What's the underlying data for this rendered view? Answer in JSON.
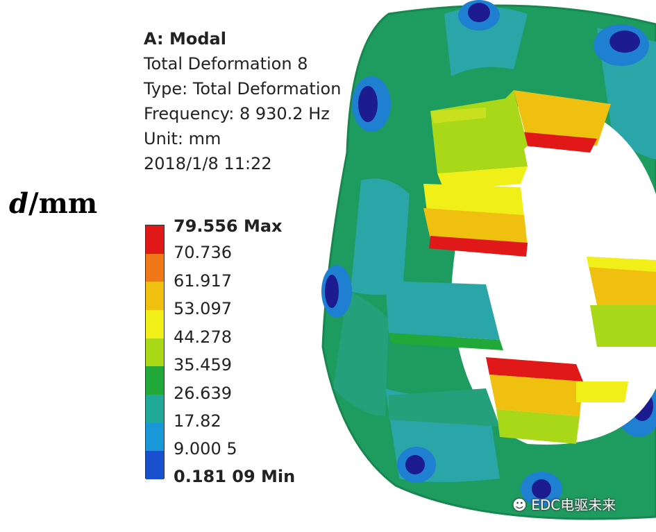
{
  "info": {
    "title": "A: Modal",
    "line1": "Total Deformation 8",
    "line2": "Type: Total Deformation",
    "line3": "Frequency: 8 930.2 Hz",
    "line4": "Unit: mm",
    "line5": "2018/1/8 11:22"
  },
  "axis": {
    "var": "d",
    "unit": "/mm"
  },
  "legend": {
    "labels": [
      "79.556 Max",
      "70.736",
      "61.917",
      "53.097",
      "44.278",
      "35.459",
      "26.639",
      "17.82",
      "9.000 5",
      "0.181 09 Min"
    ],
    "colors": [
      "#e01818",
      "#f07818",
      "#f0c010",
      "#f0f018",
      "#a8d818",
      "#20a838",
      "#20a898",
      "#1898d8",
      "#1850d0",
      "#1c1c90"
    ]
  },
  "watermark": "EDC电驱未来"
}
